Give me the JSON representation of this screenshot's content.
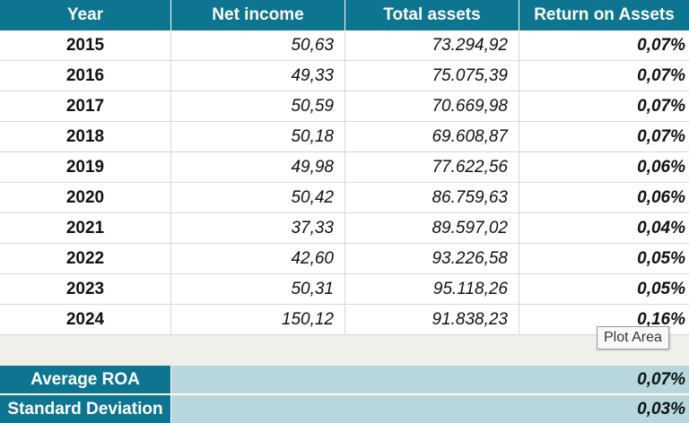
{
  "table": {
    "headers": [
      "Year",
      "Net income",
      "Total assets",
      "Return on Assets"
    ],
    "rows": [
      [
        "2015",
        "50,63",
        "73.294,92",
        "0,07%"
      ],
      [
        "2016",
        "49,33",
        "75.075,39",
        "0,07%"
      ],
      [
        "2017",
        "50,59",
        "70.669,98",
        "0,07%"
      ],
      [
        "2018",
        "50,18",
        "69.608,87",
        "0,07%"
      ],
      [
        "2019",
        "49,98",
        "77.622,56",
        "0,06%"
      ],
      [
        "2020",
        "50,42",
        "86.759,63",
        "0,06%"
      ],
      [
        "2021",
        "37,33",
        "89.597,02",
        "0,04%"
      ],
      [
        "2022",
        "42,60",
        "93.226,58",
        "0,05%"
      ],
      [
        "2023",
        "50,31",
        "95.118,26",
        "0,05%"
      ],
      [
        "2024",
        "150,12",
        "91.838,23",
        "0,16%"
      ]
    ]
  },
  "summary": {
    "average_label": "Average ROA",
    "average_value": "0,07%",
    "stddev_label": "Standard Deviation",
    "stddev_value": "0,03%"
  },
  "tooltip": {
    "text": "Plot Area"
  },
  "colors": {
    "header_bg": "#0e7591",
    "summary_value_bg": "#b7d7dd",
    "gap_bg": "#f1efea"
  }
}
